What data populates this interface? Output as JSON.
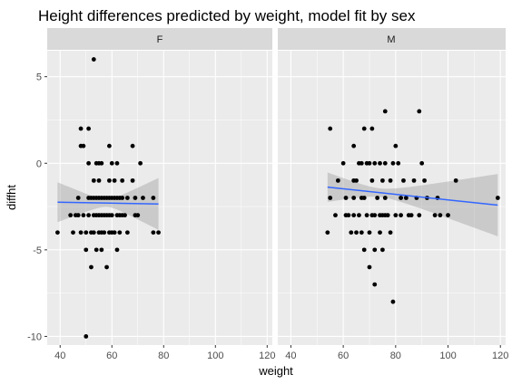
{
  "chart_data": {
    "type": "scatter",
    "title": "Height differences predicted by weight, model fit by sex",
    "xlabel": "weight",
    "ylabel": "diffht",
    "xlim": [
      35,
      122
    ],
    "ylim": [
      -10.5,
      6.5
    ],
    "x_ticks": [
      40,
      60,
      80,
      100,
      120
    ],
    "x_tick_labels": [
      "40",
      "60",
      "80",
      "100",
      "120"
    ],
    "y_ticks": [
      -10,
      -5,
      0,
      5
    ],
    "y_tick_labels": [
      "-10",
      "-5",
      "0",
      "5"
    ],
    "grid": true,
    "smooth_method": "linear model with confidence band",
    "colors": {
      "panel_bg": "#ebebeb",
      "strip_bg": "#d9d9d9",
      "grid": "#ffffff",
      "point": "#000000",
      "fit_line": "#3366ff",
      "band": "#999999"
    },
    "panels": [
      {
        "label": "F",
        "points": [
          [
            39,
            -4
          ],
          [
            44,
            -3
          ],
          [
            45,
            -4
          ],
          [
            46,
            -3
          ],
          [
            47,
            -2
          ],
          [
            47,
            -3
          ],
          [
            48,
            2
          ],
          [
            48,
            1
          ],
          [
            48,
            -4
          ],
          [
            49,
            1
          ],
          [
            49,
            -3
          ],
          [
            50,
            -4
          ],
          [
            50,
            -5
          ],
          [
            50,
            -10
          ],
          [
            51,
            0
          ],
          [
            51,
            2
          ],
          [
            51,
            -2
          ],
          [
            51,
            -3
          ],
          [
            52,
            -6
          ],
          [
            52,
            -2
          ],
          [
            52,
            -4
          ],
          [
            53,
            6
          ],
          [
            53,
            -1
          ],
          [
            53,
            -2
          ],
          [
            53,
            -3
          ],
          [
            53,
            -4
          ],
          [
            54,
            0
          ],
          [
            54,
            -2
          ],
          [
            54,
            -3
          ],
          [
            54,
            -5
          ],
          [
            55,
            0
          ],
          [
            55,
            -1
          ],
          [
            55,
            -2
          ],
          [
            55,
            -3
          ],
          [
            55,
            -4
          ],
          [
            56,
            0
          ],
          [
            56,
            -2
          ],
          [
            56,
            -3
          ],
          [
            56,
            -4
          ],
          [
            56,
            -5
          ],
          [
            57,
            -2
          ],
          [
            57,
            -3
          ],
          [
            57,
            -4
          ],
          [
            58,
            -2
          ],
          [
            58,
            -3
          ],
          [
            58,
            -6
          ],
          [
            59,
            1
          ],
          [
            59,
            -1
          ],
          [
            59,
            -2
          ],
          [
            59,
            -3
          ],
          [
            59,
            -4
          ],
          [
            60,
            0
          ],
          [
            60,
            -2
          ],
          [
            60,
            -3
          ],
          [
            60,
            -4
          ],
          [
            61,
            -1
          ],
          [
            61,
            -2
          ],
          [
            61,
            -4
          ],
          [
            62,
            0
          ],
          [
            62,
            -2
          ],
          [
            62,
            -3
          ],
          [
            62,
            -5
          ],
          [
            63,
            -2
          ],
          [
            63,
            -3
          ],
          [
            63,
            -4
          ],
          [
            64,
            -1
          ],
          [
            64,
            -2
          ],
          [
            64,
            -3
          ],
          [
            65,
            -3
          ],
          [
            66,
            -2
          ],
          [
            66,
            -4
          ],
          [
            68,
            1
          ],
          [
            68,
            -1
          ],
          [
            69,
            -2
          ],
          [
            69,
            -3
          ],
          [
            70,
            -3
          ],
          [
            71,
            0
          ],
          [
            72,
            -2
          ],
          [
            76,
            -2
          ],
          [
            76,
            -4
          ],
          [
            78,
            -4
          ]
        ],
        "fit": {
          "x_range": [
            39,
            78
          ],
          "y_start": -2.25,
          "y_end": -2.35
        },
        "band_halfwidth": {
          "at_min": 1.15,
          "at_center": 0.22,
          "at_max": 1.5,
          "center_x": 58
        }
      },
      {
        "label": "M",
        "points": [
          [
            54,
            -4
          ],
          [
            55,
            2
          ],
          [
            55,
            -2
          ],
          [
            57,
            -3
          ],
          [
            58,
            -1
          ],
          [
            60,
            0
          ],
          [
            61,
            -2
          ],
          [
            61,
            -3
          ],
          [
            62,
            -3
          ],
          [
            63,
            -4
          ],
          [
            64,
            1
          ],
          [
            64,
            -1
          ],
          [
            64,
            -2
          ],
          [
            64,
            -3
          ],
          [
            65,
            -1
          ],
          [
            65,
            -4
          ],
          [
            66,
            0
          ],
          [
            66,
            -3
          ],
          [
            67,
            0
          ],
          [
            67,
            -2
          ],
          [
            67,
            -4
          ],
          [
            68,
            2
          ],
          [
            68,
            -2
          ],
          [
            68,
            -5
          ],
          [
            69,
            0
          ],
          [
            69,
            -3
          ],
          [
            70,
            0
          ],
          [
            70,
            -4
          ],
          [
            70,
            -6
          ],
          [
            71,
            2
          ],
          [
            71,
            -1
          ],
          [
            71,
            -3
          ],
          [
            72,
            0
          ],
          [
            72,
            -3
          ],
          [
            72,
            -5
          ],
          [
            72,
            -7
          ],
          [
            73,
            -2
          ],
          [
            74,
            0
          ],
          [
            74,
            -3
          ],
          [
            74,
            -4
          ],
          [
            75,
            -1
          ],
          [
            75,
            -3
          ],
          [
            75,
            -5
          ],
          [
            76,
            3
          ],
          [
            76,
            0
          ],
          [
            76,
            -2
          ],
          [
            76,
            -3
          ],
          [
            77,
            -3
          ],
          [
            78,
            -1
          ],
          [
            78,
            -4
          ],
          [
            79,
            0
          ],
          [
            79,
            -8
          ],
          [
            80,
            1
          ],
          [
            80,
            -3
          ],
          [
            81,
            0
          ],
          [
            82,
            -2
          ],
          [
            82,
            -3
          ],
          [
            83,
            -1
          ],
          [
            84,
            -2
          ],
          [
            85,
            -3
          ],
          [
            86,
            -3
          ],
          [
            87,
            -1
          ],
          [
            88,
            -2
          ],
          [
            89,
            3
          ],
          [
            89,
            -3
          ],
          [
            90,
            0
          ],
          [
            91,
            -1
          ],
          [
            92,
            -2
          ],
          [
            95,
            -3
          ],
          [
            96,
            -2
          ],
          [
            97,
            -3
          ],
          [
            100,
            -3
          ],
          [
            103,
            -1
          ],
          [
            119,
            -2
          ]
        ],
        "fit": {
          "x_range": [
            54,
            119
          ],
          "y_start": -1.38,
          "y_end": -2.42
        },
        "band_halfwidth": {
          "at_min": 0.85,
          "at_center": 0.25,
          "at_max": 1.8,
          "center_x": 74
        }
      }
    ]
  }
}
